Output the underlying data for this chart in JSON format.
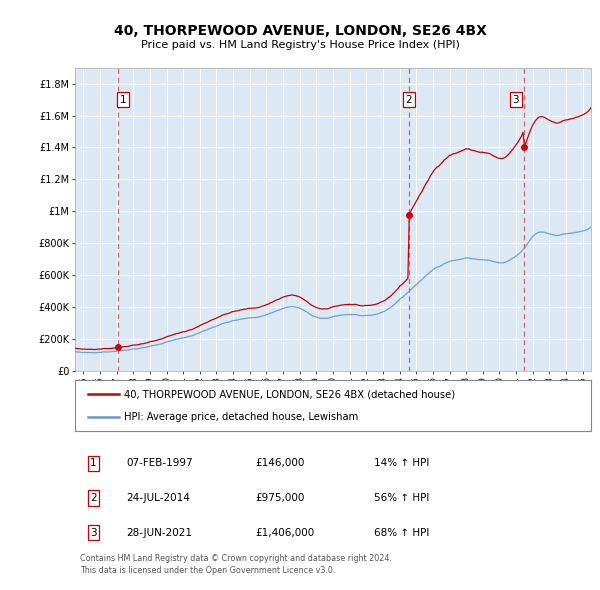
{
  "title": "40, THORPEWOOD AVENUE, LONDON, SE26 4BX",
  "subtitle": "Price paid vs. HM Land Registry's House Price Index (HPI)",
  "plot_bg_color": "#dce9f5",
  "ylim": [
    0,
    1900000
  ],
  "xlim_start": 1994.5,
  "xlim_end": 2025.5,
  "yticks": [
    0,
    200000,
    400000,
    600000,
    800000,
    1000000,
    1200000,
    1400000,
    1600000,
    1800000
  ],
  "ytick_labels": [
    "£0",
    "£200K",
    "£400K",
    "£600K",
    "£800K",
    "£1M",
    "£1.2M",
    "£1.4M",
    "£1.6M",
    "£1.8M"
  ],
  "xticks": [
    1995,
    1996,
    1997,
    1998,
    1999,
    2000,
    2001,
    2002,
    2003,
    2004,
    2005,
    2006,
    2007,
    2008,
    2009,
    2010,
    2011,
    2012,
    2013,
    2014,
    2015,
    2016,
    2017,
    2018,
    2019,
    2020,
    2021,
    2022,
    2023,
    2024,
    2025
  ],
  "red_line_color": "#cc0000",
  "blue_line_color": "#6699cc",
  "marker_color": "#cc0000",
  "dashed_line_color": "#cc6666",
  "purchase_dates": [
    1997.083,
    2014.556,
    2021.49
  ],
  "purchase_prices": [
    146000,
    975000,
    1406000
  ],
  "purchase_labels": [
    "1",
    "2",
    "3"
  ],
  "legend_red_label": "40, THORPEWOOD AVENUE, LONDON, SE26 4BX (detached house)",
  "legend_blue_label": "HPI: Average price, detached house, Lewisham",
  "table_rows": [
    {
      "label": "1",
      "date": "07-FEB-1997",
      "price": "£146,000",
      "hpi": "14% ↑ HPI"
    },
    {
      "label": "2",
      "date": "24-JUL-2014",
      "price": "£975,000",
      "hpi": "56% ↑ HPI"
    },
    {
      "label": "3",
      "date": "28-JUN-2021",
      "price": "£1,406,000",
      "hpi": "68% ↑ HPI"
    }
  ],
  "footer": "Contains HM Land Registry data © Crown copyright and database right 2024.\nThis data is licensed under the Open Government Licence v3.0."
}
